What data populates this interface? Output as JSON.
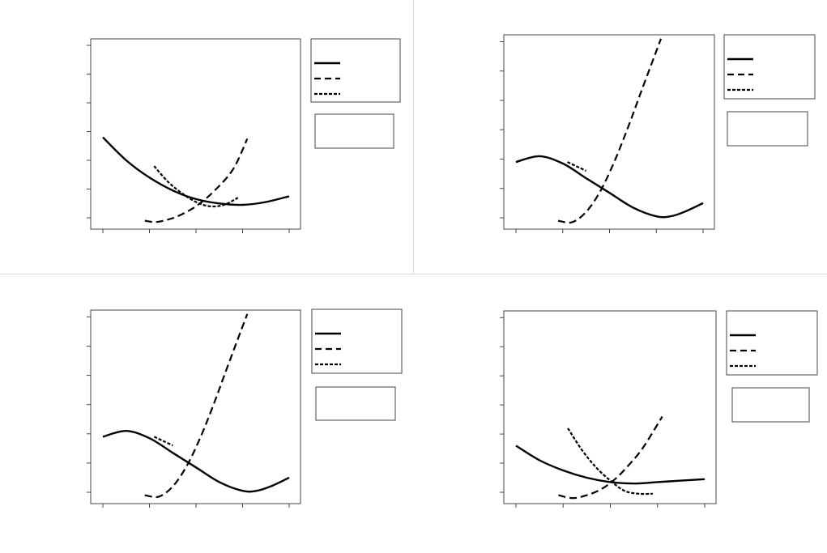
{
  "chart_data": [
    {
      "type": "line",
      "title": "",
      "xlabel": "",
      "ylabel": "",
      "xlim": [
        0,
        4
      ],
      "ylim": [
        0,
        6.4
      ],
      "grid": false,
      "legend_position": "right",
      "series": [
        {
          "name": "",
          "style": "solid",
          "x": [
            0,
            0.5,
            1,
            1.5,
            2,
            2.5,
            3,
            3.5,
            4
          ],
          "y": [
            2.8,
            2.0,
            1.4,
            0.95,
            0.65,
            0.5,
            0.45,
            0.55,
            0.75
          ]
        },
        {
          "name": "",
          "style": "dashed",
          "x": [
            0.9,
            1.1,
            1.3,
            1.6,
            2.0,
            2.4,
            2.8,
            3.1
          ],
          "y": [
            -0.1,
            -0.15,
            -0.1,
            0.05,
            0.4,
            0.95,
            1.7,
            2.75
          ]
        },
        {
          "name": "",
          "style": "dotted",
          "x": [
            1.1,
            1.4,
            1.7,
            2.0,
            2.3,
            2.6,
            2.9
          ],
          "y": [
            1.8,
            1.25,
            0.85,
            0.55,
            0.4,
            0.45,
            0.7
          ]
        }
      ]
    },
    {
      "type": "line",
      "title": "",
      "xlabel": "",
      "ylabel": "",
      "xlim": [
        0,
        4
      ],
      "ylim": [
        0,
        6.4
      ],
      "grid": false,
      "legend_position": "right",
      "series": [
        {
          "name": "",
          "style": "solid",
          "x": [
            0,
            0.5,
            1,
            1.5,
            2,
            2.5,
            3,
            3.3,
            3.6,
            4
          ],
          "y": [
            1.9,
            2.1,
            1.85,
            1.35,
            0.85,
            0.35,
            0.05,
            0.05,
            0.2,
            0.5
          ]
        },
        {
          "name": "",
          "style": "dashed",
          "x": [
            0.9,
            1.2,
            1.5,
            1.8,
            2.1,
            2.4,
            2.7,
            3.1
          ],
          "y": [
            -0.1,
            -0.15,
            0.2,
            0.9,
            1.9,
            3.1,
            4.4,
            6.1
          ]
        },
        {
          "name": "",
          "style": "dotted",
          "x": [
            1.1,
            1.3,
            1.5
          ],
          "y": [
            1.9,
            1.75,
            1.6
          ]
        }
      ]
    },
    {
      "type": "line",
      "title": "",
      "xlabel": "",
      "ylabel": "",
      "xlim": [
        0,
        4
      ],
      "ylim": [
        0,
        6.4
      ],
      "grid": false,
      "legend_position": "right",
      "series": [
        {
          "name": "",
          "style": "solid",
          "x": [
            0,
            0.5,
            1,
            1.5,
            2,
            2.5,
            3,
            3.3,
            3.6,
            4
          ],
          "y": [
            1.9,
            2.1,
            1.85,
            1.35,
            0.85,
            0.35,
            0.05,
            0.05,
            0.2,
            0.5
          ]
        },
        {
          "name": "",
          "style": "dashed",
          "x": [
            0.9,
            1.2,
            1.5,
            1.8,
            2.1,
            2.4,
            2.7,
            3.1
          ],
          "y": [
            -0.1,
            -0.15,
            0.2,
            0.9,
            1.9,
            3.1,
            4.4,
            6.1
          ]
        },
        {
          "name": "",
          "style": "dotted",
          "x": [
            1.1,
            1.3,
            1.5
          ],
          "y": [
            1.9,
            1.75,
            1.6
          ]
        }
      ]
    },
    {
      "type": "line",
      "title": "",
      "xlabel": "",
      "ylabel": "",
      "xlim": [
        0,
        4
      ],
      "ylim": [
        0,
        6.4
      ],
      "grid": false,
      "legend_position": "right",
      "series": [
        {
          "name": "",
          "style": "solid",
          "x": [
            0,
            0.5,
            1,
            1.5,
            2,
            2.5,
            3,
            3.5,
            4
          ],
          "y": [
            1.6,
            1.1,
            0.75,
            0.5,
            0.35,
            0.3,
            0.35,
            0.4,
            0.45
          ]
        },
        {
          "name": "",
          "style": "dashed",
          "x": [
            0.9,
            1.2,
            1.5,
            1.8,
            2.1,
            2.4,
            2.7,
            3.1
          ],
          "y": [
            -0.1,
            -0.2,
            -0.1,
            0.1,
            0.45,
            0.95,
            1.55,
            2.6
          ]
        },
        {
          "name": "",
          "style": "dotted",
          "x": [
            1.1,
            1.4,
            1.7,
            2.0,
            2.3,
            2.6,
            2.9
          ],
          "y": [
            2.2,
            1.45,
            0.85,
            0.4,
            0.05,
            -0.05,
            -0.05
          ]
        }
      ]
    }
  ]
}
